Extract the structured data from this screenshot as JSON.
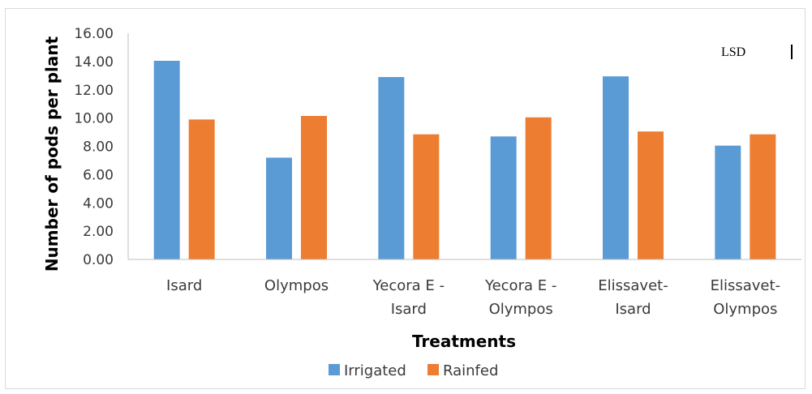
{
  "chart_data": {
    "type": "bar",
    "categories": [
      [
        "Isard"
      ],
      [
        "Olympos"
      ],
      [
        "Yecora E -",
        "Isard"
      ],
      [
        "Yecora E -",
        "Olympos"
      ],
      [
        "Elissavet-",
        "Isard"
      ],
      [
        "Elissavet-",
        "Olympos"
      ]
    ],
    "series": [
      {
        "name": "Irrigated",
        "color": "#5b9bd5",
        "values": [
          14.05,
          7.2,
          12.9,
          8.7,
          12.95,
          8.05
        ]
      },
      {
        "name": "Rainfed",
        "color": "#ed7d31",
        "values": [
          9.9,
          10.15,
          8.85,
          10.05,
          9.05,
          8.85
        ]
      }
    ],
    "xlabel": "Treatments",
    "ylabel": "Number of pods per plant",
    "ylim": [
      0,
      16
    ],
    "yticks": [
      "0.00",
      "2.00",
      "4.00",
      "6.00",
      "8.00",
      "10.00",
      "12.00",
      "14.00",
      "16.00"
    ],
    "grid": false,
    "legend": "bottom",
    "annotation": "LSD"
  }
}
